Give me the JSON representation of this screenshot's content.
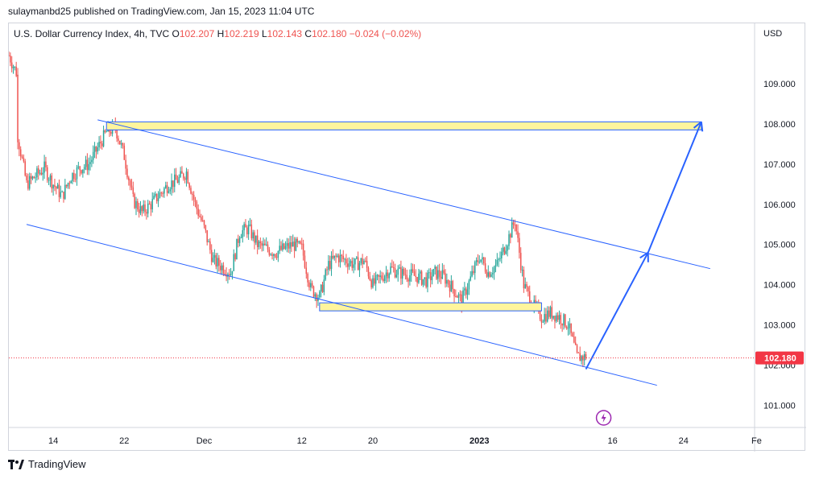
{
  "header": {
    "publisher_line": "sulaymanbd25 published on TradingView.com, Jan 15, 2023 11:04 UTC"
  },
  "legend": {
    "symbol": "U.S. Dollar Currency Index, 4h, TVC",
    "open_label": "O",
    "open": "102.207",
    "high_label": "H",
    "high": "102.219",
    "low_label": "L",
    "low": "102.143",
    "close_label": "C",
    "close": "102.180",
    "change": "−0.024 (−0.02%)"
  },
  "footer": {
    "brand": "TradingView"
  },
  "colors": {
    "up": "#26a69a",
    "down": "#ef5350",
    "trendline": "#2962ff",
    "zone_fill": "#fff59d",
    "price_tag": "#f23645"
  },
  "chart_data": {
    "type": "candlestick",
    "currency_label": "USD",
    "y_ticks": [
      "101.000",
      "102.000",
      "103.000",
      "104.000",
      "105.000",
      "106.000",
      "107.000",
      "108.000",
      "109.000"
    ],
    "ylim": [
      100.45,
      110.5
    ],
    "x_ticks": [
      {
        "label": "14",
        "date": "2022-11-14"
      },
      {
        "label": "22",
        "date": "2022-11-22"
      },
      {
        "label": "Dec",
        "date": "2022-12-01"
      },
      {
        "label": "12",
        "date": "2022-12-12"
      },
      {
        "label": "20",
        "date": "2022-12-20"
      },
      {
        "label": "2023",
        "date": "2023-01-01"
      },
      {
        "label": "16",
        "date": "2023-01-16"
      },
      {
        "label": "24",
        "date": "2023-01-24"
      },
      {
        "label": "Fe",
        "date": "2023-02-01"
      }
    ],
    "xlim": [
      "2022-11-09",
      "2023-02-01"
    ],
    "last_price": "102.180",
    "price_path": [
      [
        "2022-11-09",
        109.7
      ],
      [
        "2022-11-10",
        109.2
      ],
      [
        "2022-11-10",
        107.7
      ],
      [
        "2022-11-11",
        106.5
      ],
      [
        "2022-11-13",
        106.9
      ],
      [
        "2022-11-14",
        106.5
      ],
      [
        "2022-11-15",
        106.2
      ],
      [
        "2022-11-16",
        106.7
      ],
      [
        "2022-11-17",
        106.9
      ],
      [
        "2022-11-18",
        107.0
      ],
      [
        "2022-11-20",
        107.8
      ],
      [
        "2022-11-21",
        107.9
      ],
      [
        "2022-11-22",
        107.2
      ],
      [
        "2022-11-23",
        106.1
      ],
      [
        "2022-11-24",
        105.8
      ],
      [
        "2022-11-25",
        106.0
      ],
      [
        "2022-11-27",
        106.5
      ],
      [
        "2022-11-28",
        106.6
      ],
      [
        "2022-11-29",
        106.8
      ],
      [
        "2022-11-30",
        106.0
      ],
      [
        "2022-12-01",
        105.4
      ],
      [
        "2022-12-02",
        104.6
      ],
      [
        "2022-12-04",
        104.3
      ],
      [
        "2022-12-05",
        105.3
      ],
      [
        "2022-12-06",
        105.4
      ],
      [
        "2022-12-07",
        105.0
      ],
      [
        "2022-12-08",
        104.9
      ],
      [
        "2022-12-09",
        104.8
      ],
      [
        "2022-12-11",
        105.0
      ],
      [
        "2022-12-12",
        104.9
      ],
      [
        "2022-12-13",
        103.9
      ],
      [
        "2022-12-14",
        103.7
      ],
      [
        "2022-12-15",
        104.5
      ],
      [
        "2022-12-16",
        104.7
      ],
      [
        "2022-12-18",
        104.5
      ],
      [
        "2022-12-19",
        104.6
      ],
      [
        "2022-12-20",
        104.0
      ],
      [
        "2022-12-21",
        104.2
      ],
      [
        "2022-12-22",
        104.4
      ],
      [
        "2022-12-23",
        104.3
      ],
      [
        "2022-12-25",
        104.2
      ],
      [
        "2022-12-26",
        104.1
      ],
      [
        "2022-12-27",
        104.3
      ],
      [
        "2022-12-28",
        104.2
      ],
      [
        "2022-12-29",
        103.9
      ],
      [
        "2022-12-30",
        103.6
      ],
      [
        "2023-01-01",
        104.7
      ],
      [
        "2023-01-02",
        104.3
      ],
      [
        "2023-01-03",
        104.5
      ],
      [
        "2023-01-04",
        105.0
      ],
      [
        "2023-01-05",
        105.6
      ],
      [
        "2023-01-06",
        104.0
      ],
      [
        "2023-01-07",
        103.5
      ],
      [
        "2023-01-08",
        103.2
      ],
      [
        "2023-01-09",
        103.3
      ],
      [
        "2023-01-10",
        103.2
      ],
      [
        "2023-01-11",
        103.0
      ],
      [
        "2023-01-12",
        102.2
      ],
      [
        "2023-01-13",
        102.2
      ]
    ],
    "channel_upper": [
      [
        "2022-11-19",
        108.1
      ],
      [
        "2023-01-27",
        104.4
      ]
    ],
    "channel_lower": [
      [
        "2022-11-11",
        105.5
      ],
      [
        "2023-01-21",
        101.5
      ]
    ],
    "resistance_zone": {
      "from": "2022-11-20",
      "to": "2023-01-26",
      "low": 107.85,
      "high": 108.05
    },
    "support_zone": {
      "from": "2022-12-14",
      "to": "2023-01-08",
      "low": 103.35,
      "high": 103.55
    },
    "projection_arrows": [
      [
        [
          "2023-01-13",
          101.9
        ],
        [
          "2023-01-20",
          104.8
        ]
      ],
      [
        [
          "2023-01-20",
          104.8
        ],
        [
          "2023-01-26",
          108.05
        ]
      ]
    ]
  }
}
